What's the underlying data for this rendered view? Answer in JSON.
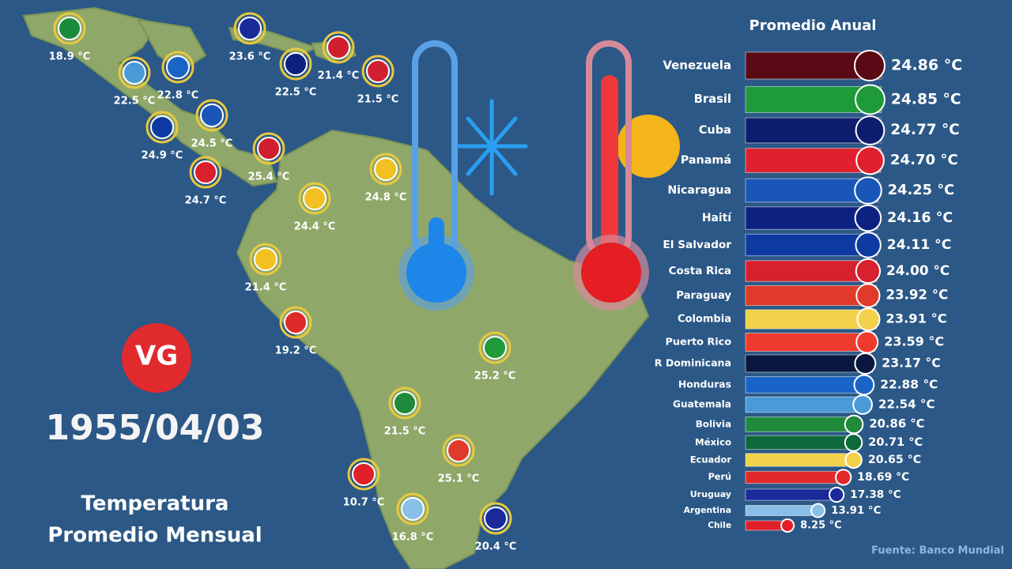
{
  "chart_data": {
    "type": "bar",
    "orientation": "horizontal",
    "title": "Promedio Anual",
    "categories": [
      "Venezuela",
      "Brasil",
      "Cuba",
      "Panamá",
      "Nicaragua",
      "Haití",
      "El Salvador",
      "Costa Rica",
      "Paraguay",
      "Colombia",
      "Puerto Rico",
      "R Dominicana",
      "Honduras",
      "Guatemala",
      "Bolivia",
      "México",
      "Ecuador",
      "Perú",
      "Uruguay",
      "Argentina",
      "Chile"
    ],
    "values": [
      24.86,
      24.85,
      24.77,
      24.7,
      24.25,
      24.16,
      24.11,
      24.0,
      23.92,
      23.91,
      23.59,
      23.17,
      22.88,
      22.54,
      20.86,
      20.71,
      20.65,
      18.69,
      17.38,
      13.91,
      8.25
    ],
    "value_labels": [
      "24.86 °C",
      "24.85 °C",
      "24.77 °C",
      "24.70 °C",
      "24.25 °C",
      "24.16 °C",
      "24.11 °C",
      "24.00 °C",
      "23.92 °C",
      "23.91 °C",
      "23.59 °C",
      "23.17 °C",
      "22.88 °C",
      "22.54 °C",
      "20.86 °C",
      "20.71 °C",
      "20.65 °C",
      "18.69 °C",
      "17.38 °C",
      "13.91 °C",
      "8.25 °C"
    ],
    "colors": [
      "#5a0a14",
      "#1e9a3a",
      "#0d1e6e",
      "#e0202e",
      "#1a56b8",
      "#0d2280",
      "#0d3aa0",
      "#d8202e",
      "#e03a2a",
      "#f2d24a",
      "#ef3a2e",
      "#0a1840",
      "#1a64c8",
      "#4a9ad8",
      "#1e8a3a",
      "#0e6a3a",
      "#f2d24a",
      "#e02a2a",
      "#1a2a9a",
      "#8ac0e8",
      "#e0202a"
    ]
  },
  "date": "1955/04/03",
  "subtitle": [
    "Temperatura",
    "Promedio Mensual"
  ],
  "logo": "VG",
  "source": "Fuente: Banco Mundial",
  "map_labels": [
    "18.9 °C",
    "23.6 °C",
    "21.4 °C",
    "22.5 °C",
    "22.8 °C",
    "22.5 °C",
    "21.5 °C",
    "24.5 °C",
    "24.9 °C",
    "25.4 °C",
    "24.7 °C",
    "24.8 °C",
    "24.4 °C",
    "21.4 °C",
    "19.2 °C",
    "25.2 °C",
    "21.5 °C",
    "25.1 °C",
    "10.7 °C",
    "16.8 °C",
    "20.4 °C"
  ]
}
